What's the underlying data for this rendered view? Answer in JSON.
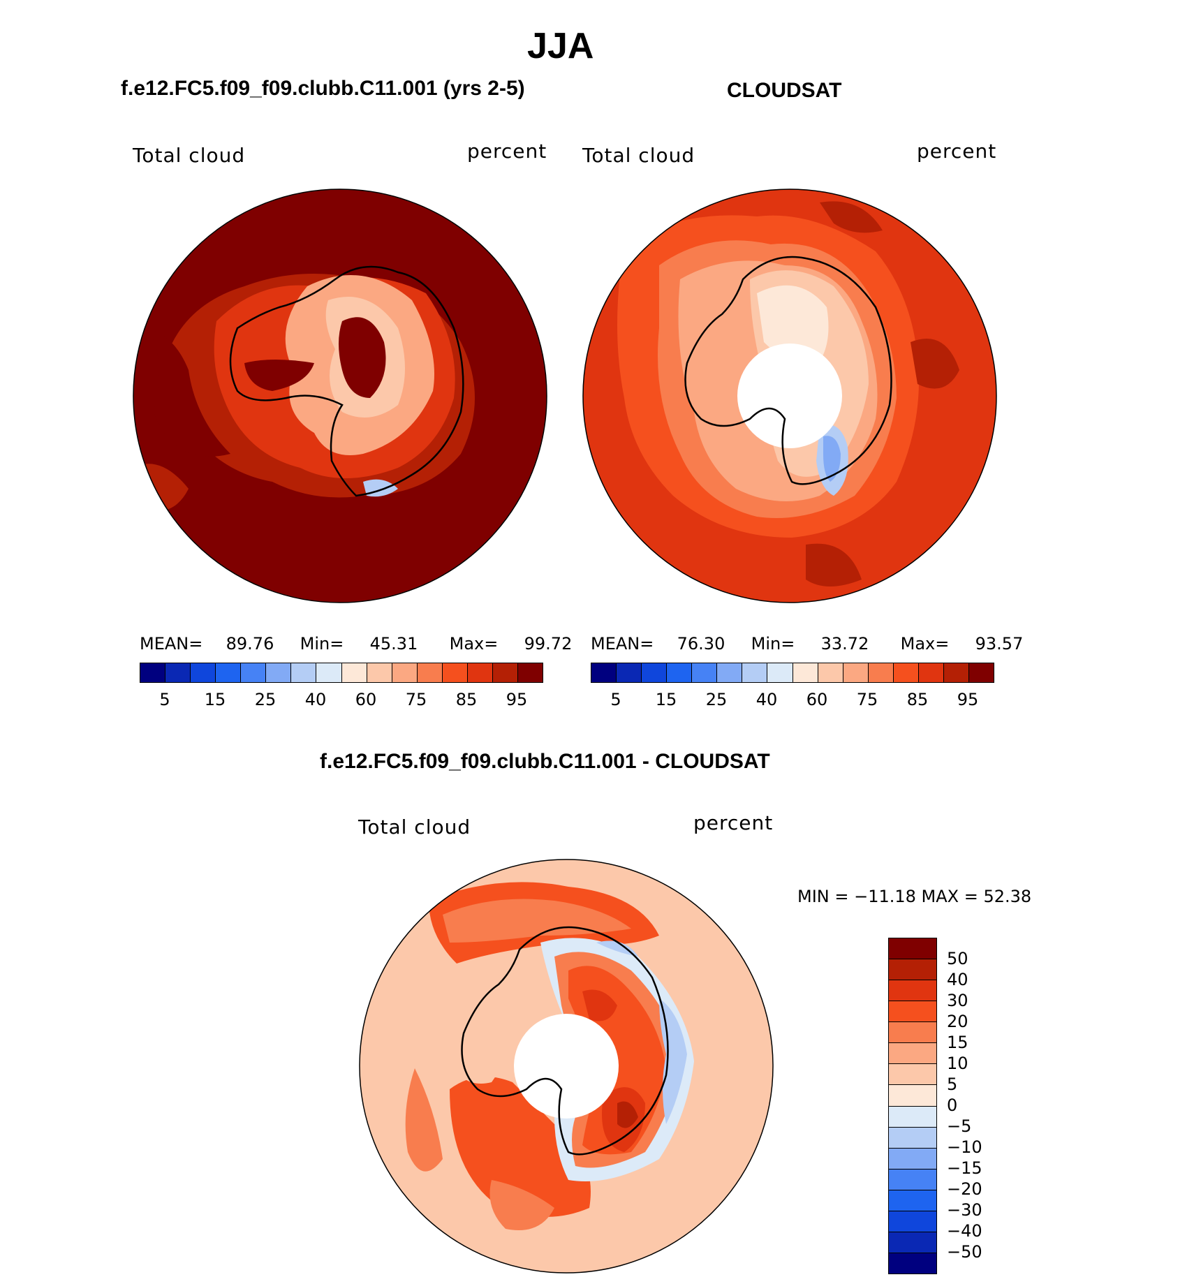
{
  "title": "JJA",
  "panels": [
    {
      "subtitle": "f.e12.FC5.f09_f09.clubb.C11.001 (yrs 2-5)",
      "left_label": "Total cloud",
      "right_label": "percent",
      "mean_label": "MEAN=",
      "mean": "89.76",
      "min_label": "Min=",
      "min": "45.31",
      "max_label": "Max=",
      "max": "99.72"
    },
    {
      "subtitle": "CLOUDSAT",
      "left_label": "Total cloud",
      "right_label": "percent",
      "mean_label": "MEAN=",
      "mean": "76.30",
      "min_label": "Min=",
      "min": "33.72",
      "max_label": "Max=",
      "max": "93.57"
    }
  ],
  "diff_panel": {
    "subtitle": "f.e12.FC5.f09_f09.clubb.C11.001 - CLOUDSAT",
    "left_label": "Total cloud",
    "right_label": "percent",
    "minmax": "MIN = −11.18 MAX =   52.38"
  },
  "abs_colorbar": {
    "colors": [
      "#00007f",
      "#0a28b4",
      "#0f46dc",
      "#1e64f0",
      "#4682f5",
      "#82aaf5",
      "#b4cdf5",
      "#dceaf8",
      "#fde8d8",
      "#fcc8aa",
      "#fba882",
      "#f87d4e",
      "#f5501e",
      "#e03510",
      "#b42005",
      "#7f0000"
    ],
    "tick_labels": [
      "5",
      "15",
      "25",
      "40",
      "60",
      "75",
      "85",
      "95"
    ]
  },
  "diff_colorbar": {
    "colors": [
      "#7f0000",
      "#b42005",
      "#e03510",
      "#f5501e",
      "#f87d4e",
      "#fba882",
      "#fcc8aa",
      "#fde8d8",
      "#dceaf8",
      "#b4cdf5",
      "#82aaf5",
      "#4682f5",
      "#1e64f0",
      "#0f46dc",
      "#0a28b4",
      "#00007f"
    ],
    "tick_labels": [
      "50",
      "40",
      "30",
      "20",
      "15",
      "10",
      "5",
      "0",
      "−5",
      "−10",
      "−15",
      "−20",
      "−30",
      "−40",
      "−50"
    ]
  },
  "chart_data": [
    {
      "type": "heatmap",
      "title": "f.e12.FC5.f09_f09.clubb.C11.001 (yrs 2-5)",
      "variable": "Total cloud",
      "units": "percent",
      "projection": "south polar stereographic",
      "contour_levels": [
        5,
        10,
        15,
        20,
        25,
        30,
        40,
        50,
        60,
        70,
        75,
        80,
        85,
        90,
        95
      ],
      "mean": 89.76,
      "min": 45.31,
      "max": 99.72
    },
    {
      "type": "heatmap",
      "title": "CLOUDSAT",
      "variable": "Total cloud",
      "units": "percent",
      "projection": "south polar stereographic",
      "contour_levels": [
        5,
        10,
        15,
        20,
        25,
        30,
        40,
        50,
        60,
        70,
        75,
        80,
        85,
        90,
        95
      ],
      "mean": 76.3,
      "min": 33.72,
      "max": 93.57
    },
    {
      "type": "heatmap",
      "title": "f.e12.FC5.f09_f09.clubb.C11.001 - CLOUDSAT",
      "variable": "Total cloud",
      "units": "percent",
      "projection": "south polar stereographic",
      "contour_levels": [
        -50,
        -40,
        -30,
        -20,
        -15,
        -10,
        -5,
        0,
        5,
        10,
        15,
        20,
        30,
        40,
        50
      ],
      "min": -11.18,
      "max": 52.38
    }
  ]
}
